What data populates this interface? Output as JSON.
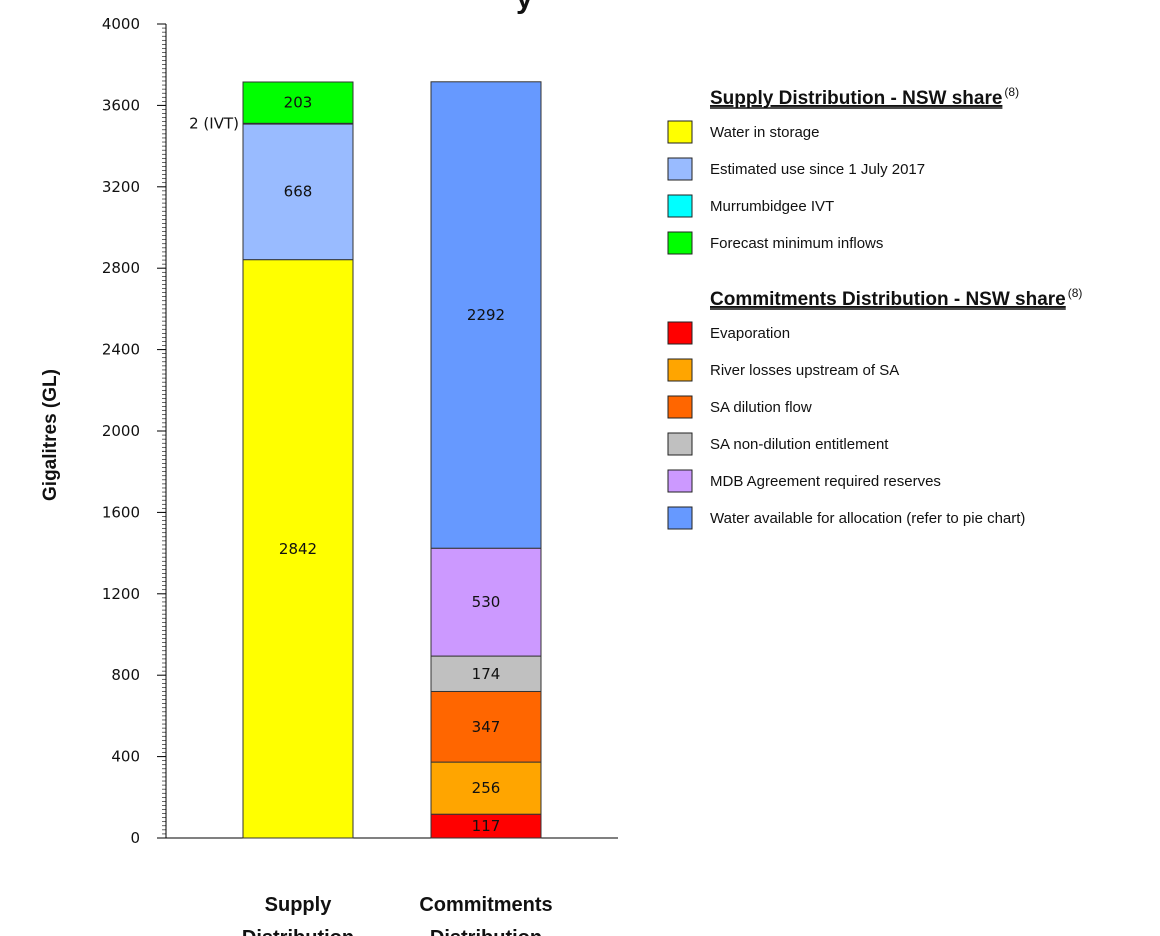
{
  "chart_data": {
    "type": "bar",
    "stacked": true,
    "title_fragment": "y",
    "ylabel": "Gigalitres (GL)",
    "ylim": [
      0,
      4000
    ],
    "yticks": [
      0,
      400,
      800,
      1200,
      1600,
      2000,
      2400,
      2800,
      3200,
      3600,
      4000
    ],
    "categories": [
      "Supply Distribution",
      "Commitments Distribution"
    ],
    "category_lines": [
      [
        "Supply",
        "Distribution"
      ],
      [
        "Commitments",
        "Distribution"
      ]
    ],
    "stacks": [
      {
        "category": "Supply Distribution",
        "segments": [
          {
            "name": "Water in storage",
            "value": 2842,
            "label": "2842",
            "color": "#FFFF00"
          },
          {
            "name": "Estimated use since 1 July 2017",
            "value": 668,
            "label": "668",
            "color": "#99BBFF"
          },
          {
            "name": "Murrumbidgee IVT",
            "value": 2,
            "label": "",
            "color": "#00FFFF"
          },
          {
            "name": "Forecast minimum inflows",
            "value": 203,
            "label": "203",
            "color": "#00FF00"
          }
        ],
        "annotation": "2 (IVT)"
      },
      {
        "category": "Commitments Distribution",
        "segments": [
          {
            "name": "Evaporation",
            "value": 117,
            "label": "117",
            "color": "#FF0000"
          },
          {
            "name": "River losses upstream of SA",
            "value": 256,
            "label": "256",
            "color": "#FFA500"
          },
          {
            "name": "SA dilution flow",
            "value": 347,
            "label": "347",
            "color": "#FF6600"
          },
          {
            "name": "SA non-dilution entitlement",
            "value": 174,
            "label": "174",
            "color": "#C0C0C0"
          },
          {
            "name": "MDB Agreement required reserves",
            "value": 530,
            "label": "530",
            "color": "#CC99FF"
          },
          {
            "name": "Water available for allocation (refer to pie chart)",
            "value": 2292,
            "label": "2292",
            "color": "#6699FF"
          }
        ]
      }
    ],
    "legend": {
      "placement": "right",
      "groups": [
        {
          "title": "Supply Distribution - NSW share",
          "note": "(8)",
          "items": [
            {
              "label": "Water in storage",
              "color": "#FFFF00"
            },
            {
              "label": "Estimated use since 1 July 2017",
              "color": "#99BBFF"
            },
            {
              "label": "Murrumbidgee IVT",
              "color": "#00FFFF"
            },
            {
              "label": "Forecast minimum inflows",
              "color": "#00FF00"
            }
          ]
        },
        {
          "title": "Commitments Distribution - NSW share",
          "note": "(8)",
          "items": [
            {
              "label": "Evaporation",
              "color": "#FF0000"
            },
            {
              "label": "River losses upstream of SA",
              "color": "#FFA500"
            },
            {
              "label": "SA dilution flow",
              "color": "#FF6600"
            },
            {
              "label": "SA non-dilution entitlement",
              "color": "#C0C0C0"
            },
            {
              "label": "MDB Agreement required reserves",
              "color": "#CC99FF"
            },
            {
              "label": "Water available for allocation (refer to pie chart)",
              "color": "#6699FF"
            }
          ]
        }
      ]
    }
  }
}
